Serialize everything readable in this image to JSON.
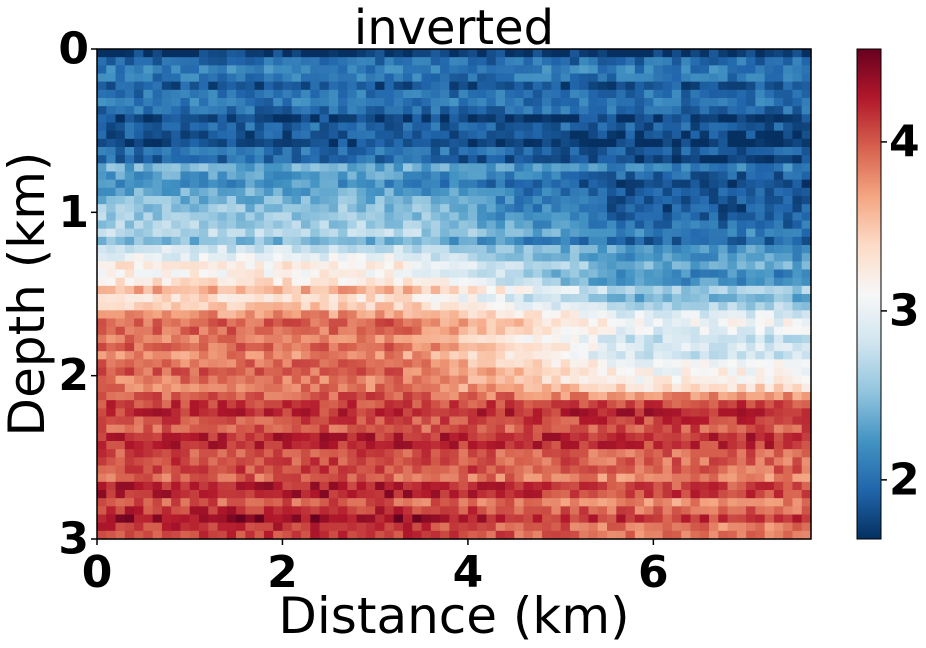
{
  "chart_data": {
    "type": "heatmap",
    "title": "inverted",
    "xlabel": "Distance (km)",
    "ylabel": "Depth (km)",
    "xlim": [
      0,
      7.7
    ],
    "ylim": [
      0,
      3
    ],
    "y_inverted": true,
    "x_ticks": [
      "0",
      "2",
      "4",
      "6"
    ],
    "x_tick_values": [
      0,
      2,
      4,
      6
    ],
    "y_ticks": [
      "0",
      "1",
      "2",
      "3"
    ],
    "y_tick_values": [
      0,
      1,
      2,
      3
    ],
    "colormap": "RdBu_r",
    "colorbar": {
      "range": [
        1.65,
        4.55
      ],
      "ticks": [
        "2",
        "3",
        "4"
      ],
      "tick_values": [
        2,
        3,
        4
      ],
      "colors": [
        "#053061",
        "#2166ac",
        "#4393c3",
        "#92c5de",
        "#d1e5f0",
        "#f7f7f7",
        "#fddbc7",
        "#f4a582",
        "#d6604d",
        "#b2182b",
        "#67001f"
      ]
    },
    "grid": false,
    "field_description_values": {
      "depth_km": [
        0.0,
        0.3,
        0.6,
        0.8,
        1.0,
        1.2,
        1.4,
        1.6,
        1.8,
        2.0,
        2.2,
        2.5,
        3.0
      ],
      "velocity_left_kmps": [
        1.9,
        1.9,
        2.0,
        2.3,
        2.7,
        2.6,
        3.3,
        3.6,
        4.0,
        3.9,
        4.1,
        4.1,
        4.2
      ],
      "velocity_right_kmps": [
        1.9,
        1.9,
        1.9,
        1.9,
        2.0,
        2.1,
        2.2,
        2.8,
        2.9,
        3.1,
        4.2,
        4.0,
        3.9
      ]
    }
  }
}
